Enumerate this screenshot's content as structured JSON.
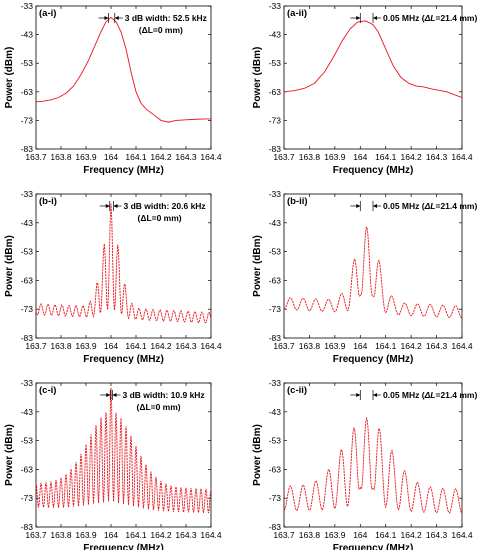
{
  "figure": {
    "background": "#ffffff",
    "line_color": "#e8141b"
  },
  "chart_data": [
    {
      "id": "a-i",
      "panel_label": "(a-i)",
      "type": "line",
      "title": "",
      "xlabel": "Frequency (MHz)",
      "ylabel": "Power (dBm)",
      "xlim": [
        163.7,
        164.4
      ],
      "ylim": [
        -83,
        -33
      ],
      "xticks": [
        163.7,
        163.8,
        163.9,
        164.0,
        164.1,
        164.2,
        164.3,
        164.4
      ],
      "xtick_labels": [
        "163.7",
        "163.8",
        "163.9",
        "164",
        "164.1",
        "164.2",
        "164.3",
        "164.4"
      ],
      "yticks": [
        -83,
        -73,
        -63,
        -53,
        -43,
        -33
      ],
      "ytick_labels": [
        "-83",
        "-73",
        "-63",
        "-53",
        "-43",
        "-33"
      ],
      "annotation_lines": [
        "3 dB width: 52.5 kHz",
        "(ΔL=0 mm)"
      ],
      "annotation_prefix": "",
      "annotation_suffix": "",
      "marker_x": [
        163.99,
        164.015
      ],
      "series": [
        {
          "points": [
            [
              163.7,
              -66.5
            ],
            [
              163.73,
              -66.3
            ],
            [
              163.76,
              -65.8
            ],
            [
              163.79,
              -65
            ],
            [
              163.82,
              -63.5
            ],
            [
              163.85,
              -61
            ],
            [
              163.88,
              -57
            ],
            [
              163.91,
              -52
            ],
            [
              163.94,
              -46
            ],
            [
              163.96,
              -42
            ],
            [
              163.98,
              -38.5
            ],
            [
              164.0,
              -37
            ],
            [
              164.02,
              -38.5
            ],
            [
              164.04,
              -42
            ],
            [
              164.06,
              -48
            ],
            [
              164.08,
              -56
            ],
            [
              164.1,
              -63
            ],
            [
              164.12,
              -67
            ],
            [
              164.14,
              -69
            ],
            [
              164.17,
              -71
            ],
            [
              164.2,
              -73
            ],
            [
              164.23,
              -73.6
            ],
            [
              164.26,
              -73
            ],
            [
              164.3,
              -72.8
            ],
            [
              164.34,
              -72.6
            ],
            [
              164.38,
              -72.5
            ],
            [
              164.4,
              -72.5
            ]
          ]
        }
      ]
    },
    {
      "id": "a-ii",
      "panel_label": "(a-ii)",
      "type": "line",
      "title": "",
      "xlabel": "Frequency (MHz)",
      "ylabel": "Power (dBm)",
      "xlim": [
        163.7,
        164.4
      ],
      "ylim": [
        -83,
        -33
      ],
      "xticks": [
        163.7,
        163.8,
        163.9,
        164.0,
        164.1,
        164.2,
        164.3,
        164.4
      ],
      "xtick_labels": [
        "163.7",
        "163.8",
        "163.9",
        "164",
        "164.1",
        "164.2",
        "164.3",
        "164.4"
      ],
      "yticks": [
        -83,
        -73,
        -63,
        -53,
        -43,
        -33
      ],
      "ytick_labels": [
        "-83",
        "-73",
        "-63",
        "-53",
        "-43",
        "-33"
      ],
      "annotation_lines": [
        "0.05 MHz (",
        "ΔL",
        "=21.4 mm)"
      ],
      "annotation_prefix": "0.05 MHz (",
      "annotation_suffix": "=21.4 mm)",
      "annotation_italic": "ΔL",
      "marker_x": [
        164.0,
        164.05
      ],
      "series": [
        {
          "points": [
            [
              163.7,
              -63
            ],
            [
              163.74,
              -62.6
            ],
            [
              163.78,
              -61.8
            ],
            [
              163.82,
              -60
            ],
            [
              163.86,
              -56
            ],
            [
              163.9,
              -50
            ],
            [
              163.93,
              -45
            ],
            [
              163.96,
              -41
            ],
            [
              163.99,
              -38.6
            ],
            [
              164.02,
              -38.2
            ],
            [
              164.05,
              -39.5
            ],
            [
              164.07,
              -42
            ],
            [
              164.1,
              -48
            ],
            [
              164.13,
              -54
            ],
            [
              164.16,
              -58
            ],
            [
              164.19,
              -60
            ],
            [
              164.22,
              -61
            ],
            [
              164.25,
              -61.3
            ],
            [
              164.28,
              -62
            ],
            [
              164.31,
              -62.5
            ],
            [
              164.34,
              -63
            ],
            [
              164.37,
              -64
            ],
            [
              164.4,
              -65
            ]
          ]
        }
      ]
    },
    {
      "id": "b-i",
      "panel_label": "(b-i)",
      "type": "line",
      "title": "",
      "xlabel": "Frequency (MHz)",
      "ylabel": "Power (dBm)",
      "xlim": [
        163.7,
        164.4
      ],
      "ylim": [
        -83,
        -33
      ],
      "xticks": [
        163.7,
        163.8,
        163.9,
        164.0,
        164.1,
        164.2,
        164.3,
        164.4
      ],
      "xtick_labels": [
        "163.7",
        "163.8",
        "163.9",
        "164",
        "164.1",
        "164.2",
        "164.3",
        "164.4"
      ],
      "yticks": [
        -83,
        -73,
        -63,
        -53,
        -43,
        -33
      ],
      "ytick_labels": [
        "-83",
        "-73",
        "-63",
        "-53",
        "-43",
        "-33"
      ],
      "annotation_lines": [
        "3 dB width: 20.6 kHz",
        "(ΔL=0 mm)"
      ],
      "annotation_prefix": "",
      "annotation_suffix": "",
      "marker_x": [
        163.995,
        164.01
      ],
      "series": [
        {
          "osc": {
            "x0": 163.7,
            "x1": 164.4,
            "n": 210,
            "center": 164.0,
            "env_amp": 30,
            "env_sigma": 0.035,
            "base": -73,
            "base_slope": -3,
            "ripple_amp": 3.2,
            "ripple_period": 0.028,
            "peak_amp": 6
          }
        }
      ]
    },
    {
      "id": "b-ii",
      "panel_label": "(b-ii)",
      "type": "line",
      "title": "",
      "xlabel": "Frequency (MHz)",
      "ylabel": "Power (dBm)",
      "xlim": [
        163.7,
        164.4
      ],
      "ylim": [
        -83,
        -33
      ],
      "xticks": [
        163.7,
        163.8,
        163.9,
        164.0,
        164.1,
        164.2,
        164.3,
        164.4
      ],
      "xtick_labels": [
        "163.7",
        "163.8",
        "163.9",
        "164",
        "164.1",
        "164.2",
        "164.3",
        "164.4"
      ],
      "yticks": [
        -83,
        -73,
        -63,
        -53,
        -43,
        -33
      ],
      "ytick_labels": [
        "-83",
        "-73",
        "-63",
        "-53",
        "-43",
        "-33"
      ],
      "annotation_lines": [
        "0.05 MHz (",
        "ΔL",
        "=21.4 mm)"
      ],
      "annotation_prefix": "0.05 MHz (",
      "annotation_suffix": "=21.4 mm)",
      "annotation_italic": "ΔL",
      "marker_x": [
        164.0,
        164.05
      ],
      "series": [
        {
          "osc": {
            "x0": 163.7,
            "x1": 164.4,
            "n": 210,
            "center": 164.025,
            "env_amp": 26,
            "env_sigma": 0.045,
            "base": -71,
            "base_slope": -3,
            "ripple_amp": 3.5,
            "ripple_period": 0.05,
            "peak_amp": 4,
            "twin": true
          }
        }
      ]
    },
    {
      "id": "c-i",
      "panel_label": "(c-i)",
      "type": "line",
      "title": "",
      "xlabel": "Frequency (MHz)",
      "ylabel": "Power (dBm)",
      "xlim": [
        163.7,
        164.4
      ],
      "ylim": [
        -83,
        -33
      ],
      "xticks": [
        163.7,
        163.8,
        163.9,
        164.0,
        164.1,
        164.2,
        164.3,
        164.4
      ],
      "xtick_labels": [
        "163.7",
        "163.8",
        "163.9",
        "164",
        "164.1",
        "164.2",
        "164.3",
        "164.4"
      ],
      "yticks": [
        -83,
        -73,
        -63,
        -53,
        -43,
        -33
      ],
      "ytick_labels": [
        "-83",
        "-73",
        "-63",
        "-53",
        "-43",
        "-33"
      ],
      "annotation_lines": [
        "3 dB width: 10.9 kHz",
        "(ΔL=0 mm)"
      ],
      "annotation_prefix": "",
      "annotation_suffix": "",
      "marker_x": [
        163.997,
        164.006
      ],
      "series": [
        {
          "osc": {
            "x0": 163.7,
            "x1": 164.4,
            "n": 280,
            "center": 164.0,
            "env_amp": 26,
            "env_sigma": 0.09,
            "base": -72,
            "base_slope": -2,
            "ripple_amp": 7,
            "ripple_period": 0.02,
            "peak_amp": 8
          }
        }
      ]
    },
    {
      "id": "c-ii",
      "panel_label": "(c-ii)",
      "type": "line",
      "title": "",
      "xlabel": "Frequency (MHz)",
      "ylabel": "Power (dBm)",
      "xlim": [
        163.7,
        164.4
      ],
      "ylim": [
        -83,
        -33
      ],
      "xticks": [
        163.7,
        163.8,
        163.9,
        164.0,
        164.1,
        164.2,
        164.3,
        164.4
      ],
      "xtick_labels": [
        "163.7",
        "163.8",
        "163.9",
        "164",
        "164.1",
        "164.2",
        "164.3",
        "164.4"
      ],
      "yticks": [
        -83,
        -73,
        -63,
        -53,
        -43,
        -33
      ],
      "ytick_labels": [
        "-83",
        "-73",
        "-63",
        "-53",
        "-43",
        "-33"
      ],
      "annotation_lines": [
        "0.05 MHz (",
        "ΔL",
        "=21.4 mm)"
      ],
      "annotation_prefix": "0.05 MHz (",
      "annotation_suffix": "=21.4 mm)",
      "annotation_italic": "ΔL",
      "marker_x": [
        164.0,
        164.05
      ],
      "series": [
        {
          "osc": {
            "x0": 163.7,
            "x1": 164.4,
            "n": 280,
            "center": 164.025,
            "env_amp": 24,
            "env_sigma": 0.09,
            "base": -73,
            "base_slope": -1,
            "ripple_amp": 7,
            "ripple_period": 0.05,
            "peak_amp": 6,
            "twin": true
          }
        }
      ]
    }
  ]
}
